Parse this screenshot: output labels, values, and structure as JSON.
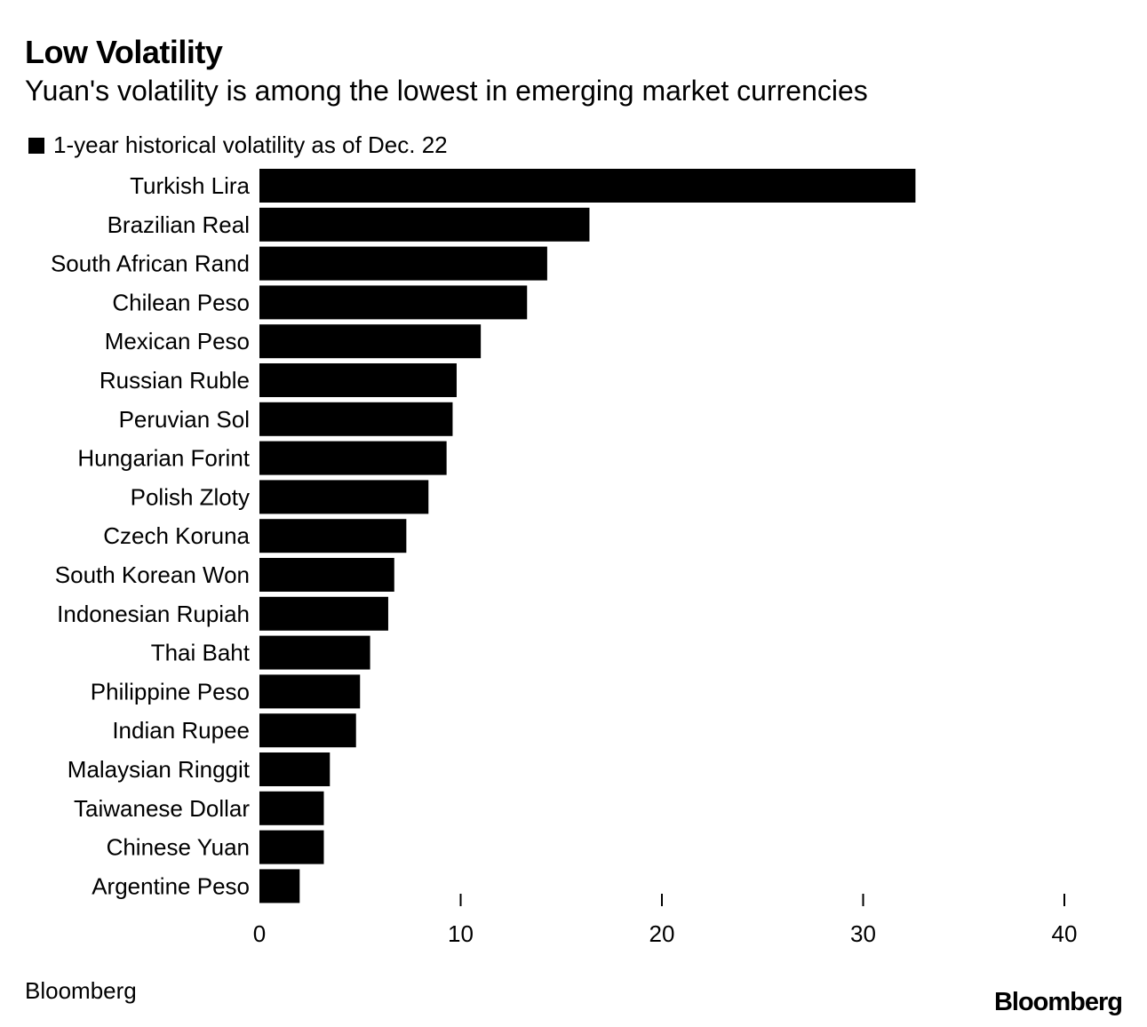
{
  "header": {
    "title": "Low Volatility",
    "subtitle": "Yuan's volatility is among the lowest in emerging market currencies"
  },
  "legend": {
    "label": "1-year historical volatility as of Dec. 22"
  },
  "footer": {
    "source": "Bloomberg",
    "logo": "Bloomberg"
  },
  "chart_data": {
    "type": "bar",
    "orientation": "horizontal",
    "title": "Low Volatility",
    "subtitle": "Yuan's volatility is among the lowest in emerging market currencies",
    "categories": [
      "Turkish Lira",
      "Brazilian Real",
      "South African Rand",
      "Chilean Peso",
      "Mexican Peso",
      "Russian Ruble",
      "Peruvian Sol",
      "Hungarian Forint",
      "Polish Zloty",
      "Czech Koruna",
      "South Korean Won",
      "Indonesian Rupiah",
      "Thai Baht",
      "Philippine Peso",
      "Indian Rupee",
      "Malaysian Ringgit",
      "Taiwanese Dollar",
      "Chinese Yuan",
      "Argentine Peso"
    ],
    "series": [
      {
        "name": "1-year historical volatility as of Dec. 22",
        "values": [
          32.6,
          16.4,
          14.3,
          13.3,
          11.0,
          9.8,
          9.6,
          9.3,
          8.4,
          7.3,
          6.7,
          6.4,
          5.5,
          5.0,
          4.8,
          3.5,
          3.2,
          3.2,
          2.0
        ]
      }
    ],
    "xlim": [
      0,
      40
    ],
    "xticks": [
      0,
      10,
      20,
      30,
      40
    ],
    "xlabel": "",
    "ylabel": "",
    "grid": false,
    "color": "#000000"
  }
}
